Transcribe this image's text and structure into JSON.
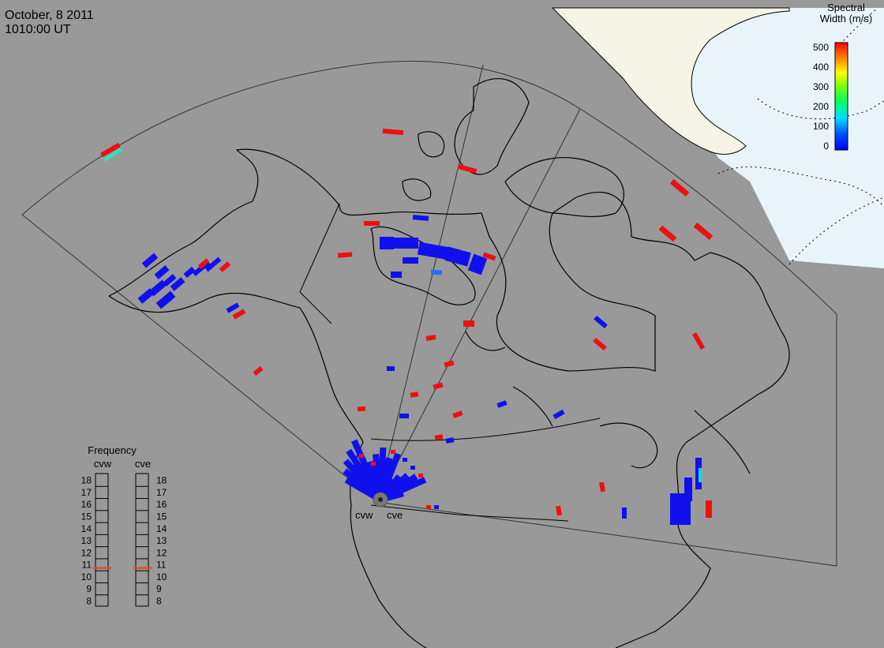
{
  "header": {
    "date": "October, 8 2011",
    "time": "1010:00 UT"
  },
  "colorbar": {
    "title_line1": "Spectral",
    "title_line2": "Width (m/s)",
    "ticks": [
      "500",
      "400",
      "300",
      "200",
      "100",
      "0"
    ],
    "min": 0,
    "max": 500
  },
  "frequency_panel": {
    "title": "Frequency",
    "radar_left": "cvw",
    "radar_right": "cve",
    "scale": [
      "18",
      "17",
      "16",
      "15",
      "14",
      "13",
      "12",
      "11",
      "10",
      "9",
      "8"
    ],
    "cvw_frequency_mhz": 10.8,
    "cve_frequency_mhz": 10.8
  },
  "radars": [
    {
      "name": "cvw"
    },
    {
      "name": "cve"
    }
  ],
  "colors": {
    "ocean": "#999999",
    "sunlit_land": "#f6f4e6",
    "sunlit_ocean": "#e8f4fa",
    "scatter_low": "#1010ee",
    "scatter_high": "#ee1010",
    "frequency_marker": "#e05020"
  }
}
